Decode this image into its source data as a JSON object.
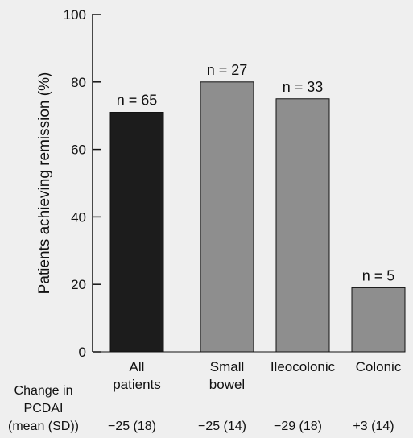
{
  "chart_data": {
    "type": "bar",
    "ylabel": "Patients achieving remission (%)",
    "ylim": [
      0,
      100
    ],
    "yticks": [
      0,
      20,
      40,
      60,
      80,
      100
    ],
    "categories": [
      {
        "lines": [
          "All",
          "patients"
        ]
      },
      {
        "lines": [
          "Small",
          "bowel"
        ]
      },
      {
        "lines": [
          "Ileocolonic"
        ]
      },
      {
        "lines": [
          "Colonic"
        ]
      }
    ],
    "values": [
      71,
      80,
      75,
      19
    ],
    "data_labels": [
      "n = 65",
      "n = 27",
      "n = 33",
      "n = 5"
    ],
    "bar_colors": [
      "#1c1c1c",
      "#8e8e8e",
      "#8e8e8e",
      "#8e8e8e"
    ],
    "bottom_table": {
      "label_lines": [
        "Change in",
        "PCDAI",
        "(mean (SD))"
      ],
      "values": [
        "−25 (18)",
        "−25 (14)",
        "−29 (18)",
        "+3 (14)"
      ]
    }
  }
}
